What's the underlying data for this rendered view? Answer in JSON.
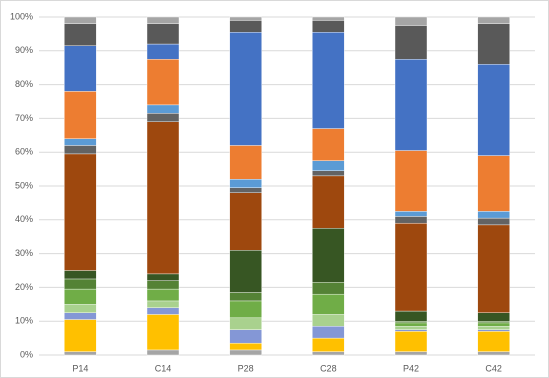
{
  "chart_data": {
    "type": "stacked_bar",
    "categories": [
      "P14",
      "C14",
      "P28",
      "C28",
      "P42",
      "C42"
    ],
    "ylim": [
      0,
      100
    ],
    "yticks": [
      {
        "value": 0,
        "label": "0%"
      },
      {
        "value": 10,
        "label": "10%"
      },
      {
        "value": 20,
        "label": "20%"
      },
      {
        "value": 30,
        "label": "30%"
      },
      {
        "value": 40,
        "label": "40%"
      },
      {
        "value": 50,
        "label": "50%"
      },
      {
        "value": 60,
        "label": "60%"
      },
      {
        "value": 70,
        "label": "70%"
      },
      {
        "value": 80,
        "label": "80%"
      },
      {
        "value": 90,
        "label": "90%"
      },
      {
        "value": 100,
        "label": "100%"
      }
    ],
    "grid": true,
    "series": [
      {
        "color": "#a5a5a5",
        "values": [
          1,
          1.5,
          1.5,
          1,
          1,
          1
        ]
      },
      {
        "color": "#ffc000",
        "values": [
          9.5,
          10.5,
          2,
          4,
          6,
          6
        ]
      },
      {
        "color": "#8497d6",
        "values": [
          2,
          2,
          4,
          3.5,
          0.5,
          0.5
        ]
      },
      {
        "color": "#a9d18e",
        "values": [
          2.5,
          2,
          3.5,
          3.5,
          1,
          1
        ]
      },
      {
        "color": "#70ad47",
        "values": [
          4.5,
          3.5,
          5,
          6,
          1,
          1
        ]
      },
      {
        "color": "#548235",
        "values": [
          3,
          2.5,
          2.5,
          3.5,
          0.5,
          0.5
        ]
      },
      {
        "color": "#375623",
        "values": [
          2.5,
          2,
          12.5,
          16,
          3,
          2.5
        ]
      },
      {
        "color": "#9e480e",
        "values": [
          34.5,
          45,
          17,
          15.5,
          26,
          26
        ]
      },
      {
        "color": "#636363",
        "values": [
          2.5,
          2.5,
          1.5,
          1.5,
          2,
          2
        ]
      },
      {
        "color": "#5b9bd5",
        "values": [
          2,
          2.5,
          2.5,
          3,
          1.5,
          2
        ]
      },
      {
        "color": "#ed7d31",
        "values": [
          14,
          13.5,
          10,
          9.5,
          18,
          16.5
        ]
      },
      {
        "color": "#4472c4",
        "values": [
          13.5,
          4.5,
          33.5,
          28.5,
          27,
          27
        ]
      },
      {
        "color": "#595959",
        "values": [
          6.5,
          6,
          3.5,
          3.5,
          10,
          12
        ]
      },
      {
        "color": "#a5a5a5",
        "values": [
          2,
          2,
          1,
          1,
          2.5,
          2
        ]
      }
    ]
  }
}
